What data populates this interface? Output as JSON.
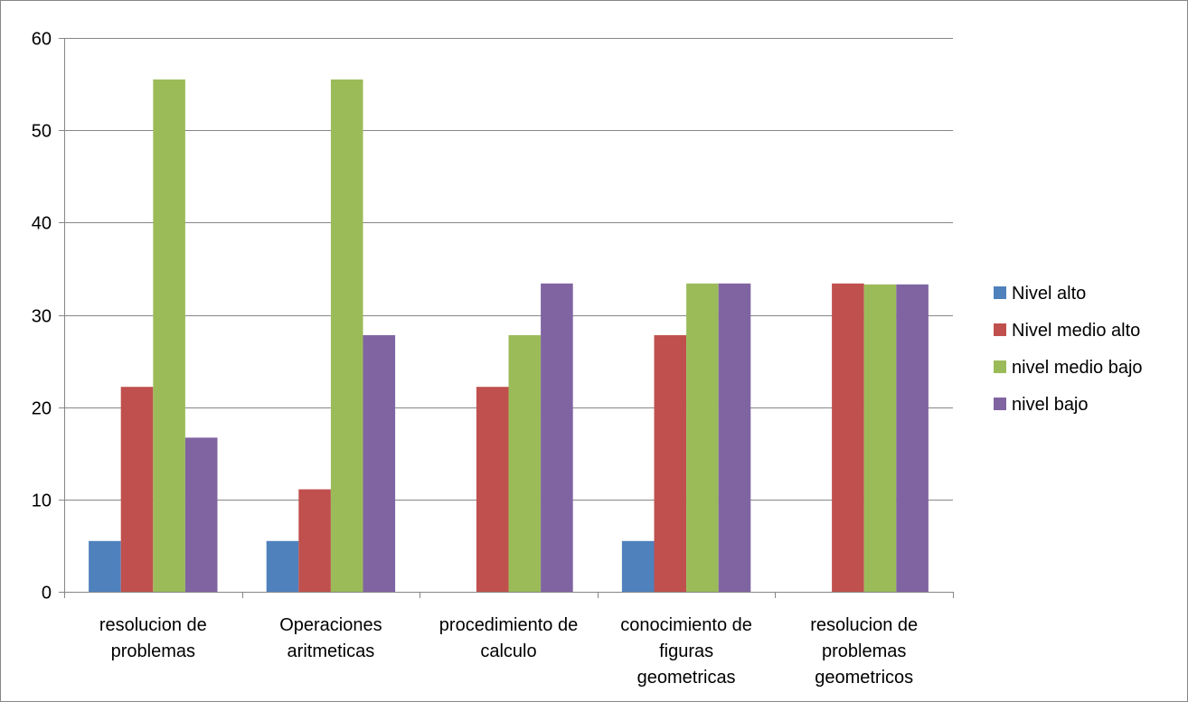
{
  "chart_data": {
    "type": "bar",
    "title": "",
    "xlabel": "",
    "ylabel": "",
    "ylim": [
      0,
      60
    ],
    "yticks": [
      0,
      10,
      20,
      30,
      40,
      50,
      60
    ],
    "grid": true,
    "legend_position": "right",
    "categories": [
      [
        "resolucion de",
        "problemas"
      ],
      [
        "Operaciones",
        "aritmeticas"
      ],
      [
        "procedimiento de",
        "calculo"
      ],
      [
        "conocimiento de",
        "figuras",
        "geometricas"
      ],
      [
        "resolucion de",
        "problemas",
        "geometricos"
      ]
    ],
    "series": [
      {
        "name": "Nivel alto",
        "color": "#4F81BD",
        "values": [
          5.5,
          5.5,
          0,
          5.5,
          0
        ]
      },
      {
        "name": "Nivel medio alto",
        "color": "#C0504D",
        "values": [
          22.2,
          11.1,
          22.2,
          27.8,
          33.4
        ]
      },
      {
        "name": "nivel medio bajo",
        "color": "#9BBB59",
        "values": [
          55.5,
          55.5,
          27.8,
          33.4,
          33.3
        ]
      },
      {
        "name": "nivel bajo",
        "color": "#8064A2",
        "values": [
          16.7,
          27.8,
          33.4,
          33.4,
          33.3
        ]
      }
    ]
  }
}
